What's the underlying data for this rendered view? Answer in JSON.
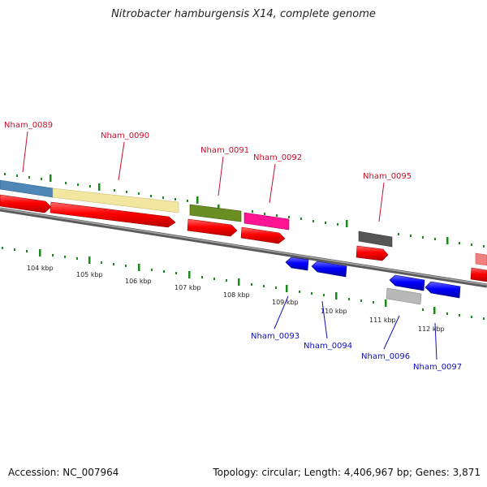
{
  "title": "Nitrobacter hamburgensis X14, complete genome",
  "footer": {
    "accession": "Accession: NC_007964",
    "summary": "Topology: circular; Length: 4,406,967 bp; Genes: 3,871"
  },
  "ticks": [
    "104 kbp",
    "105 kbp",
    "106 kbp",
    "107 kbp",
    "108 kbp",
    "109 kbp",
    "110 kbp",
    "111 kbp",
    "112 kbp"
  ],
  "genes_top": [
    {
      "label": "Nham_0089",
      "color": "#c8102e"
    },
    {
      "label": "Nham_0090",
      "color": "#c8102e"
    },
    {
      "label": "Nham_0091",
      "color": "#c8102e"
    },
    {
      "label": "Nham_0092",
      "color": "#c8102e"
    },
    {
      "label": "Nham_0095",
      "color": "#c8102e"
    }
  ],
  "genes_bottom": [
    {
      "label": "Nham_0093",
      "color": "#1010c0"
    },
    {
      "label": "Nham_0094",
      "color": "#1010c0"
    },
    {
      "label": "Nham_0096",
      "color": "#1010c0"
    },
    {
      "label": "Nham_0097",
      "color": "#1010c0"
    }
  ],
  "colors": {
    "backbone": "#7a7a7a",
    "cds_red": "#ff0000",
    "cds_blue": "#0000ff",
    "tick_green": "#1a7a1a",
    "cog_blue": "#4f86b8",
    "cog_yellow": "#f2e6a0",
    "cog_olive": "#6b8e23",
    "cog_magenta": "#ff1493",
    "cog_darkgray": "#555555",
    "cog_lightgray": "#b8b8b8",
    "cog_salmon": "#f08080"
  }
}
